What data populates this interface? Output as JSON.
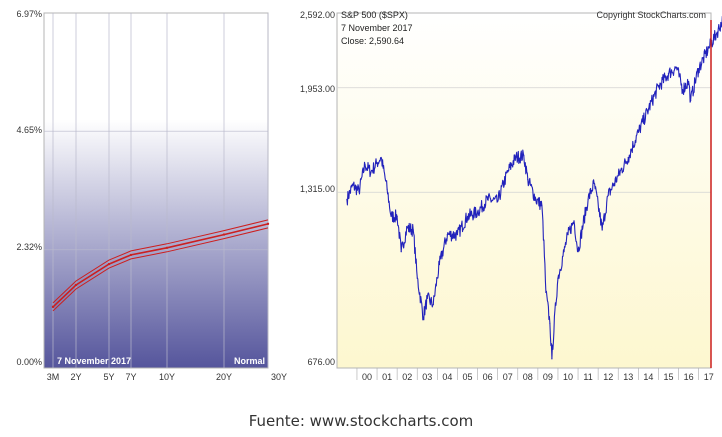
{
  "caption": "Fuente: www.stockcharts.com",
  "colors": {
    "yield_line": "#cc1f1f",
    "sp_line": "#2222bb",
    "yield_bg_top": "#ffffff",
    "yield_bg_bottom": "#55559c",
    "sp_bg_top": "#ffffff",
    "sp_bg_bottom": "#fdf7cf",
    "grid": "#c8c8c8",
    "axis_text": "#333333"
  },
  "chart_data": [
    {
      "type": "line",
      "title": "",
      "date_label": "7 November 2017",
      "curve_label": "Normal",
      "x_ticks": [
        "3M",
        "2Y",
        "5Y",
        "7Y",
        "10Y",
        "20Y",
        "30Y"
      ],
      "y_ticks": [
        "6.97%",
        "4.65%",
        "2.32%",
        "0.00%"
      ],
      "ylim": [
        0,
        6.97
      ],
      "grid": true,
      "series": [
        {
          "x": [
            "3M",
            "2Y",
            "5Y",
            "7Y",
            "10Y",
            "20Y",
            "30Y"
          ],
          "values": [
            1.2,
            1.63,
            2.04,
            2.22,
            2.36,
            2.62,
            2.83
          ]
        }
      ]
    },
    {
      "type": "line",
      "title": "S&P 500 ($SPX)",
      "copyright": "Copyright StockCharts.com",
      "date_label": "7 November 2017",
      "close_label": "Close: 2,590.64",
      "y_ticks": [
        "2,592.00",
        "1,953.00",
        "1,315.00",
        "676.00"
      ],
      "ylim": [
        676,
        2592
      ],
      "x_ticks": [
        "00",
        "01",
        "02",
        "03",
        "04",
        "05",
        "06",
        "07",
        "08",
        "09",
        "10",
        "11",
        "12",
        "13",
        "14",
        "15",
        "16",
        "17"
      ],
      "grid": true,
      "series": [
        {
          "x": [
            1999.0,
            1999.3,
            1999.6,
            1999.9,
            2000.2,
            2000.5,
            2000.7,
            2001.0,
            2001.2,
            2001.5,
            2001.7,
            2002.0,
            2002.3,
            2002.5,
            2002.8,
            2003.0,
            2003.3,
            2003.6,
            2004.0,
            2004.5,
            2005.0,
            2005.5,
            2006.0,
            2006.5,
            2007.0,
            2007.4,
            2007.8,
            2008.0,
            2008.4,
            2008.7,
            2008.9,
            2009.1,
            2009.2,
            2009.5,
            2009.8,
            2010.0,
            2010.3,
            2010.5,
            2011.0,
            2011.3,
            2011.7,
            2012.0,
            2012.5,
            2013.0,
            2013.5,
            2014.0,
            2014.5,
            2015.0,
            2015.4,
            2015.7,
            2016.0,
            2016.1,
            2016.5,
            2017.0,
            2017.4,
            2017.85
          ],
          "values": [
            1280,
            1350,
            1320,
            1460,
            1420,
            1470,
            1500,
            1330,
            1200,
            1200,
            1050,
            1150,
            1140,
            950,
            820,
            880,
            860,
            1000,
            1120,
            1120,
            1200,
            1220,
            1280,
            1270,
            1420,
            1500,
            1510,
            1380,
            1280,
            1250,
            900,
            800,
            700,
            950,
            1050,
            1120,
            1180,
            1050,
            1280,
            1360,
            1140,
            1300,
            1400,
            1500,
            1650,
            1800,
            1960,
            2060,
            2110,
            1940,
            2000,
            1860,
            2100,
            2270,
            2400,
            2590
          ]
        }
      ]
    }
  ]
}
